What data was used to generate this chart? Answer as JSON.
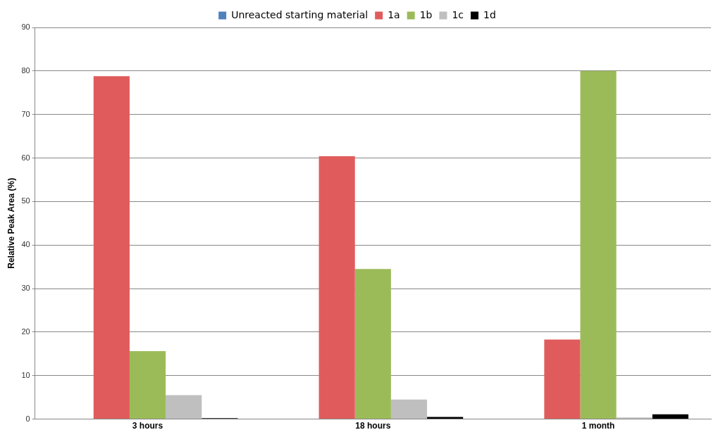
{
  "chart_data": {
    "type": "bar",
    "ylabel": "Relative Peak Area (%)",
    "categories": [
      "3 hours",
      "18 hours",
      "1 month"
    ],
    "series": [
      {
        "name": "Unreacted starting material",
        "color": "#4f81bd",
        "values": [
          0,
          0,
          0
        ]
      },
      {
        "name": "1a",
        "color": "#e05c5c",
        "values": [
          78.8,
          60.4,
          18.3
        ]
      },
      {
        "name": "1b",
        "color": "#9bbb59",
        "values": [
          15.6,
          34.5,
          80
        ]
      },
      {
        "name": "1c",
        "color": "#bfbfbf",
        "values": [
          5.5,
          4.5,
          0.4
        ]
      },
      {
        "name": "1d",
        "color": "#000000",
        "values": [
          0.2,
          0.5,
          1.1
        ]
      }
    ],
    "ylim": [
      0,
      90
    ],
    "yticks": [
      0,
      10,
      20,
      30,
      40,
      50,
      60,
      70,
      80,
      90
    ],
    "grid": "y",
    "legend": "top"
  }
}
